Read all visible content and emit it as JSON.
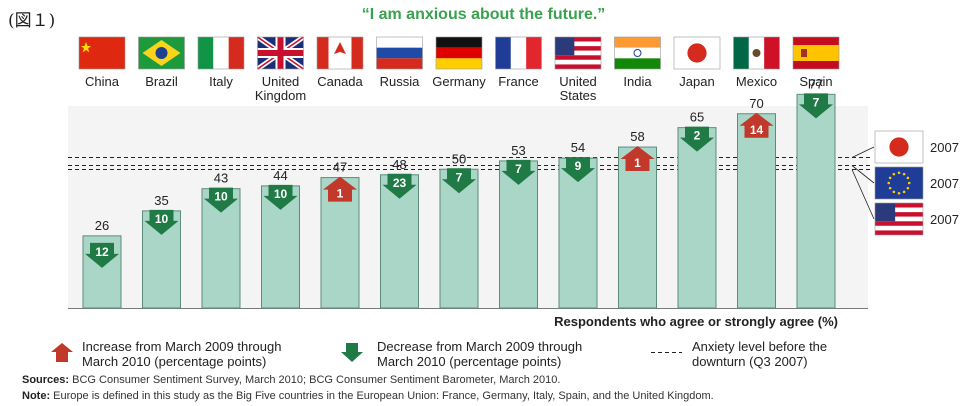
{
  "figure_label": "(図１)",
  "chart_data": {
    "type": "bar",
    "title": "“I am anxious about the future.”",
    "categories": [
      "China",
      "Brazil",
      "Italy",
      "United Kingdom",
      "Canada",
      "Russia",
      "Germany",
      "France",
      "United States",
      "India",
      "Japan",
      "Mexico",
      "Spain"
    ],
    "category_lines": [
      [
        "China"
      ],
      [
        "Brazil"
      ],
      [
        "Italy"
      ],
      [
        "United",
        "Kingdom"
      ],
      [
        "Canada"
      ],
      [
        "Russia"
      ],
      [
        "Germany"
      ],
      [
        "France"
      ],
      [
        "United",
        "States"
      ],
      [
        "India"
      ],
      [
        "Japan"
      ],
      [
        "Mexico"
      ],
      [
        "Spain"
      ]
    ],
    "values": [
      26,
      35,
      43,
      44,
      47,
      48,
      50,
      53,
      54,
      58,
      65,
      70,
      77
    ],
    "changes": [
      {
        "dir": "down",
        "value": 12
      },
      {
        "dir": "down",
        "value": 10
      },
      {
        "dir": "down",
        "value": 10
      },
      {
        "dir": "down",
        "value": 10
      },
      {
        "dir": "up",
        "value": 1
      },
      {
        "dir": "down",
        "value": 23
      },
      {
        "dir": "down",
        "value": 7
      },
      {
        "dir": "down",
        "value": 7
      },
      {
        "dir": "down",
        "value": 9
      },
      {
        "dir": "up",
        "value": 1
      },
      {
        "dir": "down",
        "value": 2
      },
      {
        "dir": "up",
        "value": 14
      },
      {
        "dir": "down",
        "value": 7
      }
    ],
    "ylim": [
      0,
      80
    ],
    "xlabel": "Respondents who agree or strongly agree (%)",
    "reference_lines": [
      {
        "label": "2007",
        "flag": "Japan",
        "value": 54.5
      },
      {
        "label": "2007",
        "flag": "Europe",
        "value": 51.5
      },
      {
        "label": "2007",
        "flag": "United States",
        "value": 50.0
      }
    ],
    "colors": {
      "bar": "#a9d6c6",
      "bar_border": "#5c8c7c",
      "up": "#c0392b",
      "down": "#1f7a45",
      "title": "#3aa24e"
    }
  },
  "legend": {
    "increase": "Increase from March 2009 through\nMarch 2010 (percentage points)",
    "decrease": "Decrease from March 2009 through\nMarch 2010 (percentage points)",
    "baseline": "Anxiety level before the\ndownturn (Q3 2007)"
  },
  "sources_label": "Sources:",
  "sources_text": " BCG Consumer Sentiment Survey, March 2010; BCG Consumer Sentiment Barometer, March 2010.",
  "note_label": "Note:",
  "note_text": " Europe is defined in this study as the Big Five countries in the European Union: France, Germany, Italy, Spain, and the United Kingdom."
}
